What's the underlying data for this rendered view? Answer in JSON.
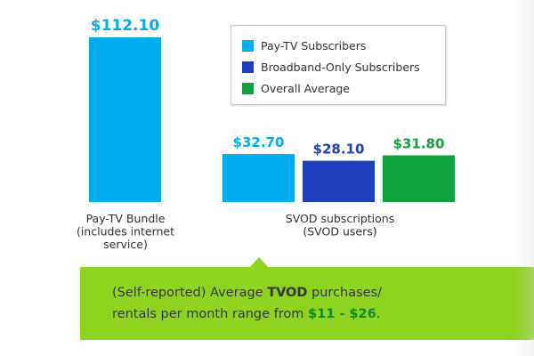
{
  "colors": {
    "pay_tv": "#00aeef",
    "broadband": "#1f3fbf",
    "overall": "#0fa13c",
    "callout_bg": "#8fd321",
    "callout_text": "#333333",
    "range_text": "#0b8a2b"
  },
  "legend": {
    "items": [
      {
        "label": "Pay-TV Subscribers",
        "color": "#00aeef"
      },
      {
        "label": "Broadband-Only Subscribers",
        "color": "#1f3fbf"
      },
      {
        "label": "Overall Average",
        "color": "#0fa13c"
      }
    ]
  },
  "chart_data": {
    "type": "bar",
    "title": "",
    "xlabel": "",
    "ylabel": "",
    "ylim": [
      0,
      120
    ],
    "grid": false,
    "legend_position": "top-right",
    "groups": [
      {
        "label_lines": [
          "Pay-TV Bundle",
          "(includes internet",
          "service)"
        ],
        "bars": [
          {
            "series": "Pay-TV Subscribers",
            "value": 112.1,
            "label": "$112.10",
            "color": "#00aeef"
          }
        ]
      },
      {
        "label_lines": [
          "SVOD subscriptions",
          "(SVOD users)"
        ],
        "bars": [
          {
            "series": "Pay-TV Subscribers",
            "value": 32.7,
            "label": "$32.70",
            "color": "#00aeef"
          },
          {
            "series": "Broadband-Only Subscribers",
            "value": 28.1,
            "label": "$28.10",
            "color": "#1f3fbf"
          },
          {
            "series": "Overall Average",
            "value": 31.8,
            "label": "$31.80",
            "color": "#0fa13c"
          }
        ]
      }
    ]
  },
  "callout": {
    "line1_prefix": "(Self-reported) Average ",
    "line1_bold": "TVOD",
    "line1_suffix": " purchases/",
    "line2_prefix": "rentals per month range from ",
    "line2_range": "$11 - $26",
    "line2_suffix": "."
  }
}
